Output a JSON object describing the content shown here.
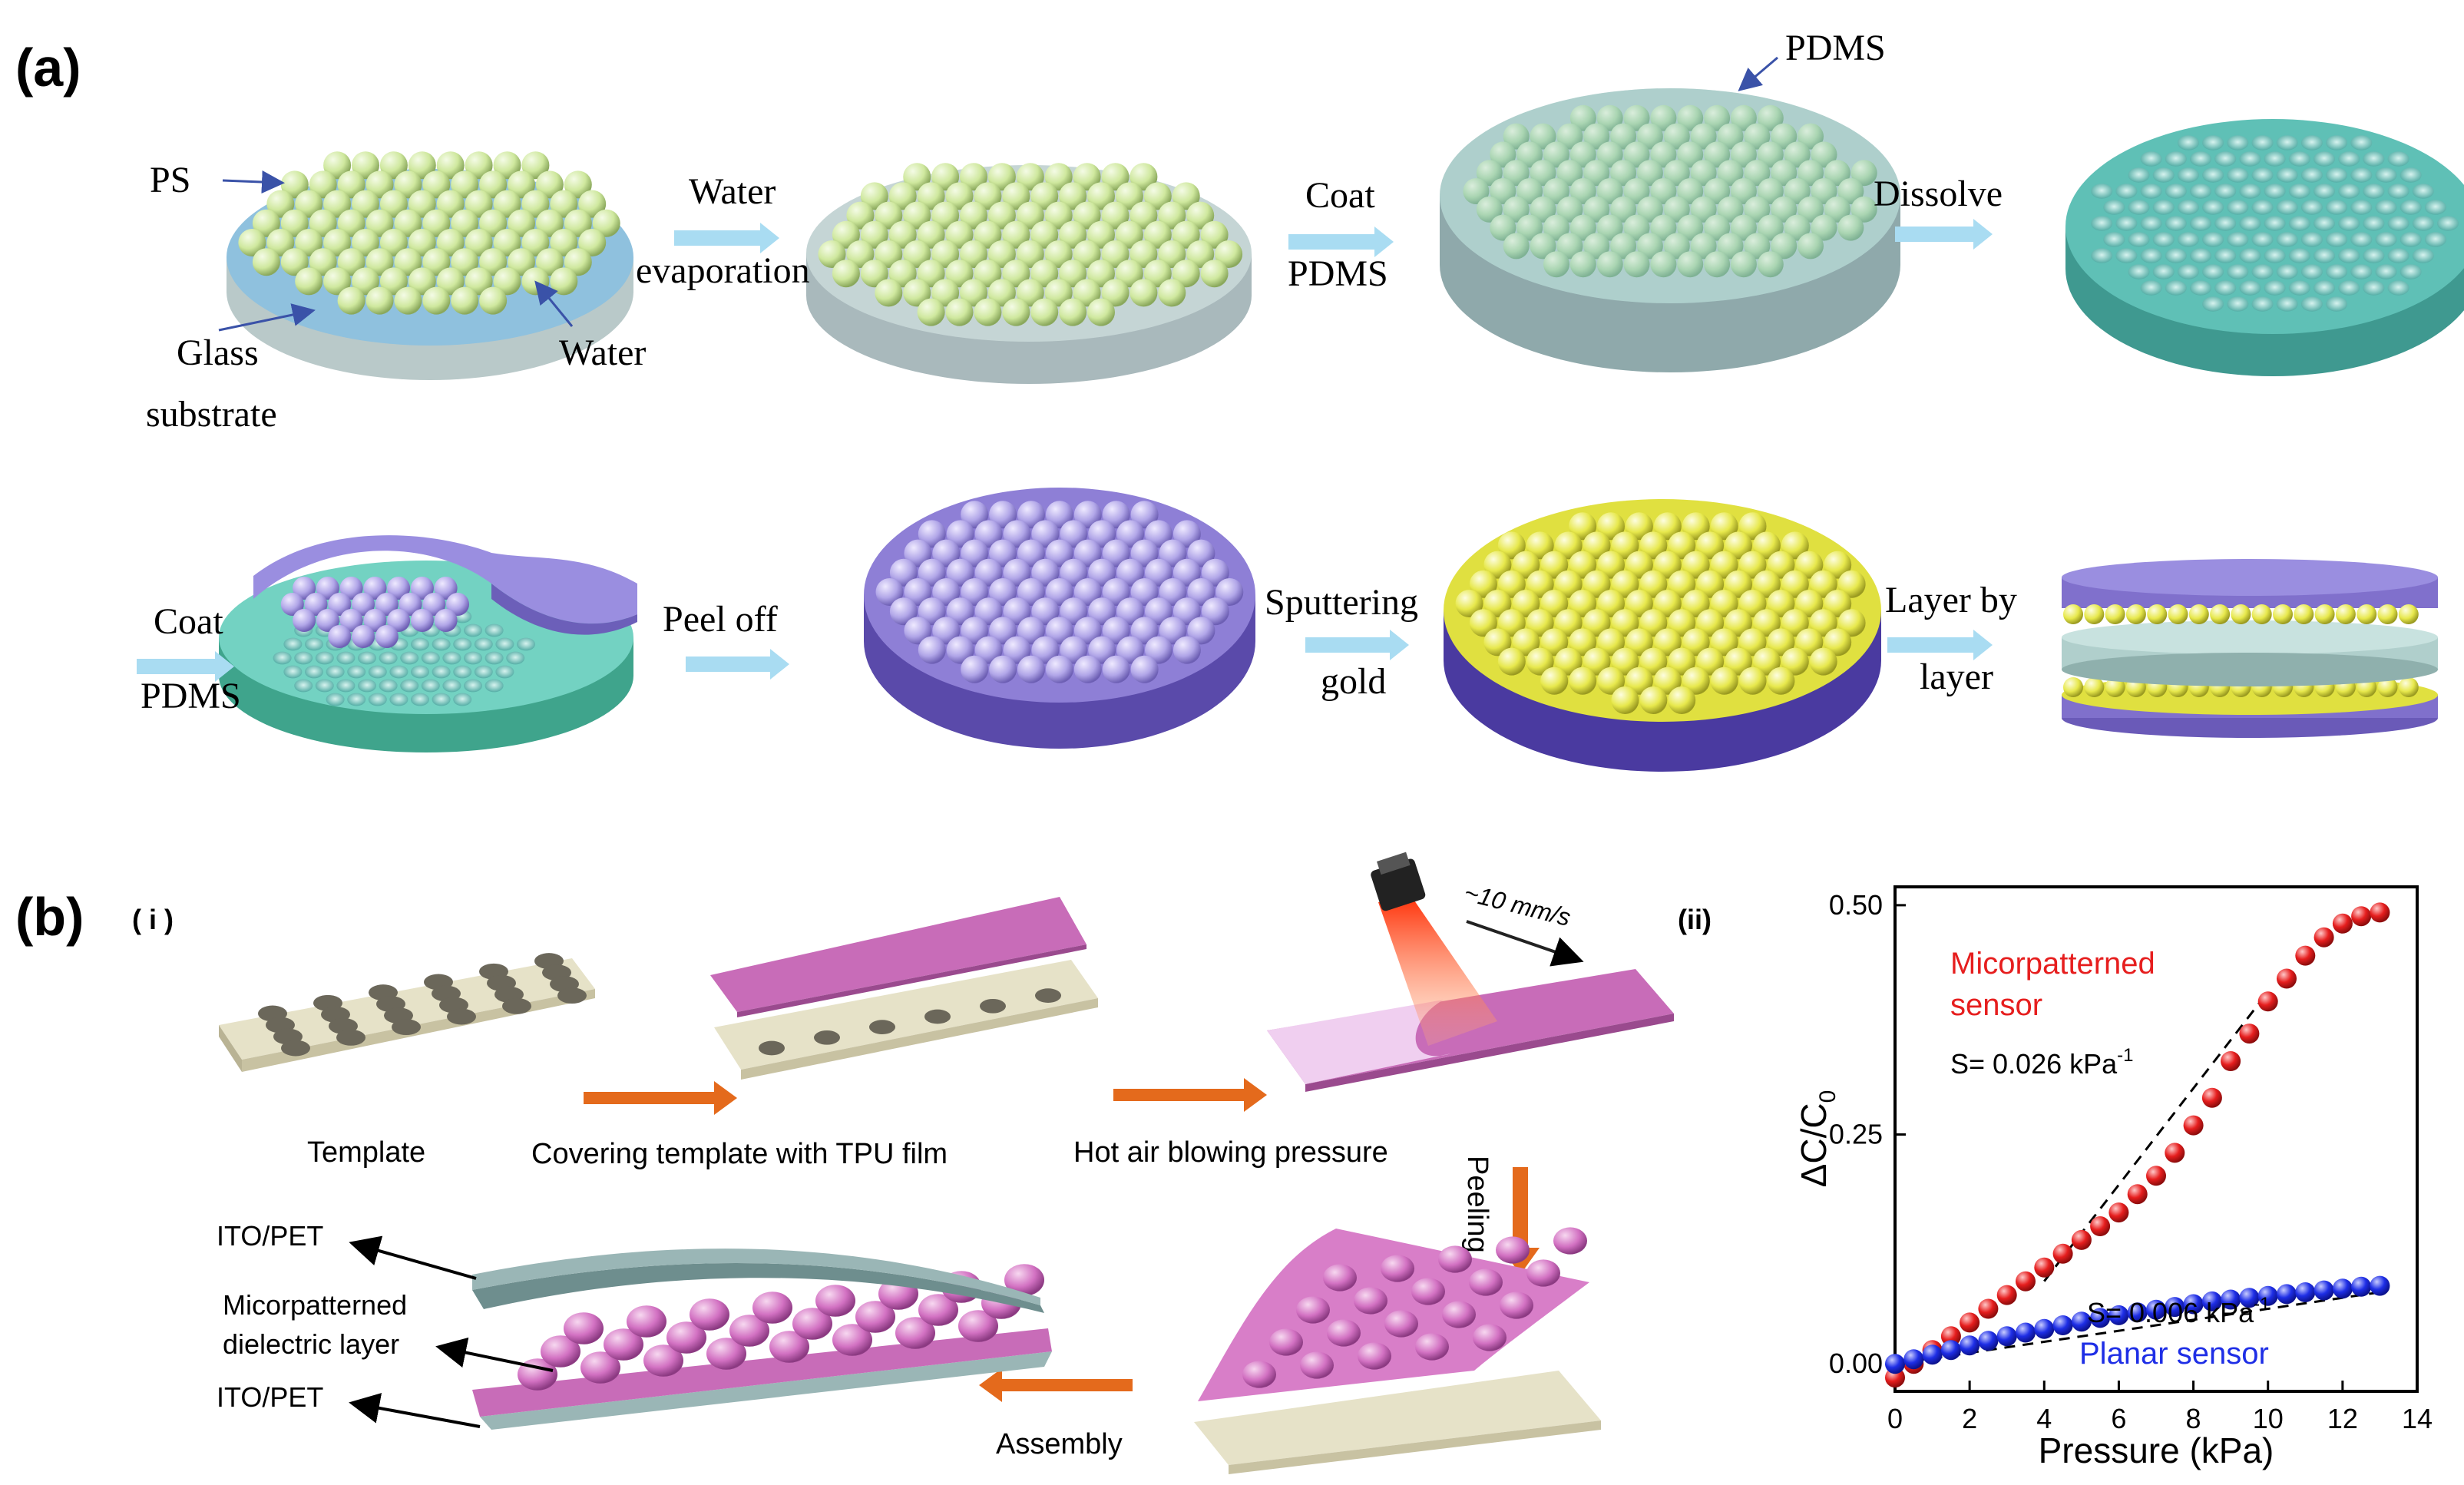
{
  "panel_a": {
    "label": "(a)",
    "row1": {
      "ps": "PS",
      "glass_line1": "Glass",
      "glass_line2": "substrate",
      "water": "Water",
      "step1_line1": "Water",
      "step1_line2": "evaporation",
      "step2_line1": "Coat",
      "step2_line2": "PDMS",
      "pdms": "PDMS",
      "step3": "Dissolve"
    },
    "row2": {
      "coat_line1": "Coat",
      "coat_line2": "PDMS",
      "step1": "Peel off",
      "step2_line1": "Sputtering",
      "step2_line2": "gold",
      "step3_line1": "Layer by",
      "step3_line2": "layer"
    }
  },
  "panel_b": {
    "label": "(b)",
    "sub_i": "( i )",
    "sub_ii": "(ii)",
    "template": "Template",
    "covering": "Covering template with TPU film",
    "hot_air": "Hot air blowing pressure",
    "speed": "~10 mm/s",
    "peeling": "Peeling",
    "assembly": "Assembly",
    "ito_top": "ITO/PET",
    "dielectric_line1": "Micorpatterned",
    "dielectric_line2": "dielectric layer",
    "ito_bottom": "ITO/PET"
  },
  "colors": {
    "ps_sphere": "#d6eeaa",
    "pdms": "#9fc9c6",
    "purple": "#8e7fd6",
    "gold": "#e8e84a",
    "tpu_pink": "#c86cb8",
    "arrow_blue": "#a9dcf2",
    "arrow_orange": "#e46a1c",
    "series_red": "#e61e1e",
    "series_blue": "#1e2ee6"
  },
  "chart_data": {
    "type": "scatter",
    "xlabel": "Pressure (kPa)",
    "ylabel": "ΔC/C",
    "ylabel_sub": "0",
    "xlim": [
      0,
      14
    ],
    "ylim": [
      -0.03,
      0.52
    ],
    "x_ticks": [
      "0",
      "2",
      "4",
      "6",
      "8",
      "10",
      "12",
      "14"
    ],
    "y_ticks": [
      "0.00",
      "0.25",
      "0.50"
    ],
    "grid": false,
    "series": [
      {
        "name": "Micorpatterned sensor",
        "name_line1": "Micorpatterned",
        "name_line2": "sensor",
        "slope_label": "S= 0.026 kPa",
        "slope_sup": "-1",
        "color": "#e61e1e",
        "x": [
          0,
          0.5,
          1,
          1.5,
          2,
          2.5,
          3,
          3.5,
          4,
          4.5,
          5,
          5.5,
          6,
          6.5,
          7,
          7.5,
          8,
          8.5,
          9,
          9.5,
          10,
          10.5,
          11,
          11.5,
          12,
          12.5,
          13
        ],
        "y": [
          -0.015,
          0.0,
          0.015,
          0.03,
          0.045,
          0.06,
          0.075,
          0.09,
          0.105,
          0.12,
          0.135,
          0.15,
          0.165,
          0.185,
          0.205,
          0.23,
          0.26,
          0.29,
          0.33,
          0.36,
          0.395,
          0.42,
          0.445,
          0.465,
          0.48,
          0.488,
          0.492
        ]
      },
      {
        "name": "Planar sensor",
        "slope_label": "S= 0.006 kPa",
        "slope_sup": "-1",
        "color": "#1e2ee6",
        "x": [
          0,
          0.5,
          1,
          1.5,
          2,
          2.5,
          3,
          3.5,
          4,
          4.5,
          5,
          5.5,
          6,
          6.5,
          7,
          7.5,
          8,
          8.5,
          9,
          9.5,
          10,
          10.5,
          11,
          11.5,
          12,
          12.5,
          13
        ],
        "y": [
          0.0,
          0.005,
          0.01,
          0.015,
          0.02,
          0.025,
          0.03,
          0.034,
          0.038,
          0.042,
          0.046,
          0.05,
          0.053,
          0.056,
          0.059,
          0.062,
          0.065,
          0.068,
          0.07,
          0.072,
          0.074,
          0.076,
          0.078,
          0.08,
          0.082,
          0.084,
          0.085
        ]
      }
    ]
  }
}
